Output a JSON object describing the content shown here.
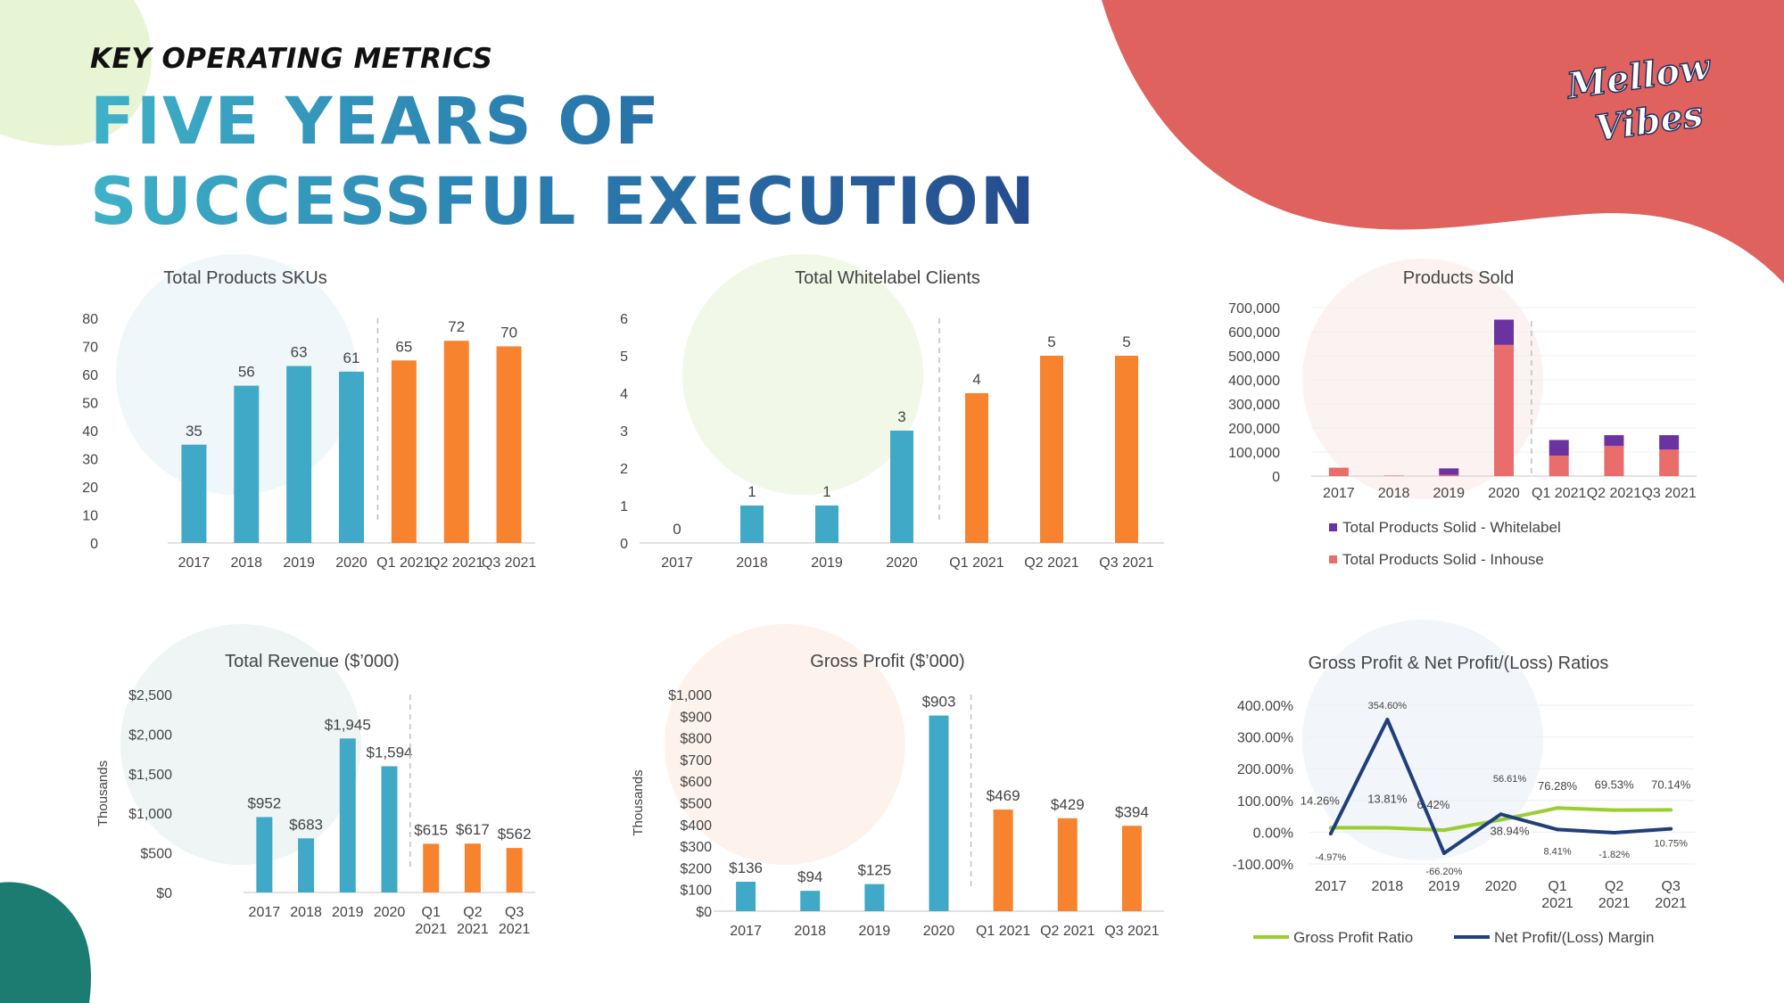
{
  "header": {
    "kicker": "KEY OPERATING METRICS",
    "title": "FIVE YEARS OF SUCCESSFUL EXECUTION",
    "logo_line1": "Mellow",
    "logo_line2": "Vibes"
  },
  "colors": {
    "historical": "#41A9C8",
    "current": "#F8832F",
    "inhouse": "#E96D6A",
    "whitelabel": "#6B33A1",
    "gross_line": "#9ACD32",
    "net_line": "#1F3F7A",
    "blob_red": "#E0625E",
    "blob_green": "#E8F5D5",
    "blob_teal": "#1C7C72"
  },
  "chart_data": [
    {
      "id": "skus",
      "type": "bar",
      "title": "Total Products SKUs",
      "categories": [
        "2017",
        "2018",
        "2019",
        "2020",
        "Q1 2021",
        "Q2 2021",
        "Q3 2021"
      ],
      "values": [
        35,
        56,
        63,
        61,
        65,
        72,
        70
      ],
      "labels": [
        "35",
        "56",
        "63",
        "61",
        "65",
        "72",
        "70"
      ],
      "ylim": [
        0,
        80
      ],
      "yticks": [
        0,
        10,
        20,
        30,
        40,
        50,
        60,
        70,
        80
      ],
      "ytick_labels": [
        "0",
        "10",
        "20",
        "30",
        "40",
        "50",
        "60",
        "70",
        "80"
      ],
      "historical_count": 4,
      "ylabel": ""
    },
    {
      "id": "clients",
      "type": "bar",
      "title": "Total Whitelabel Clients",
      "categories": [
        "2017",
        "2018",
        "2019",
        "2020",
        "Q1 2021",
        "Q2 2021",
        "Q3 2021"
      ],
      "values": [
        0,
        1,
        1,
        3,
        4,
        5,
        5
      ],
      "labels": [
        "0",
        "1",
        "1",
        "3",
        "4",
        "5",
        "5"
      ],
      "ylim": [
        0,
        6
      ],
      "yticks": [
        0,
        1,
        2,
        3,
        4,
        5,
        6
      ],
      "ytick_labels": [
        "0",
        "1",
        "2",
        "3",
        "4",
        "5",
        "6"
      ],
      "historical_count": 4,
      "ylabel": ""
    },
    {
      "id": "products_sold",
      "type": "bar",
      "stacked": true,
      "title": "Products Sold",
      "categories": [
        "2017",
        "2018",
        "2019",
        "2020",
        "Q1 2021",
        "Q2 2021",
        "Q3 2021"
      ],
      "series": [
        {
          "name": "Total Products Solid - Inhouse",
          "values": [
            35000,
            2000,
            5000,
            545000,
            85000,
            125000,
            110000
          ]
        },
        {
          "name": "Total Products Solid - Whitelabel",
          "values": [
            0,
            0,
            27000,
            105000,
            65000,
            45000,
            60000
          ]
        }
      ],
      "ylim": [
        0,
        700000
      ],
      "yticks": [
        0,
        100000,
        200000,
        300000,
        400000,
        500000,
        600000,
        700000
      ],
      "ytick_labels": [
        "0",
        "100,000",
        "200,000",
        "300,000",
        "400,000",
        "500,000",
        "600,000",
        "700,000"
      ],
      "legend": [
        "Total Products Solid - Whitelabel",
        "Total Products Solid - Inhouse"
      ]
    },
    {
      "id": "revenue",
      "type": "bar",
      "title": "Total Revenue ($’000)",
      "categories": [
        "2017",
        "2018",
        "2019",
        "2020",
        "Q1 2021",
        "Q2 2021",
        "Q3 2021"
      ],
      "category_lines": [
        [
          "2017"
        ],
        [
          "2018"
        ],
        [
          "2019"
        ],
        [
          "2020"
        ],
        [
          "Q1",
          "2021"
        ],
        [
          "Q2",
          "2021"
        ],
        [
          "Q3",
          "2021"
        ]
      ],
      "values": [
        952,
        683,
        1945,
        1594,
        615,
        617,
        562
      ],
      "labels": [
        "$952",
        "$683",
        "$1,945",
        "$1,594",
        "$615",
        "$617",
        "$562"
      ],
      "ylim": [
        0,
        2500
      ],
      "yticks": [
        0,
        500,
        1000,
        1500,
        2000,
        2500
      ],
      "ytick_labels": [
        "$0",
        "$500",
        "$1,000",
        "$1,500",
        "$2,000",
        "$2,500"
      ],
      "historical_count": 4,
      "ylabel": "Thousands"
    },
    {
      "id": "gross_profit",
      "type": "bar",
      "title": "Gross Profit ($’000)",
      "categories": [
        "2017",
        "2018",
        "2019",
        "2020",
        "Q1 2021",
        "Q2 2021",
        "Q3 2021"
      ],
      "values": [
        136,
        94,
        125,
        903,
        469,
        429,
        394
      ],
      "labels": [
        "$136",
        "$94",
        "$125",
        "$903",
        "$469",
        "$429",
        "$394"
      ],
      "ylim": [
        0,
        1000
      ],
      "yticks": [
        0,
        100,
        200,
        300,
        400,
        500,
        600,
        700,
        800,
        900,
        1000
      ],
      "ytick_labels": [
        "$0",
        "$100",
        "$200",
        "$300",
        "$400",
        "$500",
        "$600",
        "$700",
        "$800",
        "$900",
        "$1,000"
      ],
      "historical_count": 4,
      "ylabel": "Thousands"
    },
    {
      "id": "ratios",
      "type": "line",
      "title": "Gross Profit & Net Profit/(Loss) Ratios",
      "categories": [
        "2017",
        "2018",
        "2019",
        "2020",
        "Q1 2021",
        "Q2 2021",
        "Q3 2021"
      ],
      "category_lines": [
        [
          "2017"
        ],
        [
          "2018"
        ],
        [
          "2019"
        ],
        [
          "2020"
        ],
        [
          "Q1",
          "2021"
        ],
        [
          "Q2",
          "2021"
        ],
        [
          "Q3",
          "2021"
        ]
      ],
      "series": [
        {
          "name": "Gross Profit Ratio",
          "values": [
            14.26,
            13.81,
            6.42,
            38.94,
            76.28,
            69.53,
            70.14
          ],
          "labels": [
            "14.26%",
            "13.81%",
            "6.42%",
            "38.94%",
            "76.28%",
            "69.53%",
            "70.14%"
          ]
        },
        {
          "name": "Net Profit/(Loss) Margin",
          "values": [
            -4.97,
            354.6,
            -66.2,
            56.61,
            8.41,
            -1.82,
            10.75
          ],
          "labels": [
            "-4.97%",
            "354.60%",
            "-66.20%",
            "56.61%",
            "8.41%",
            "-1.82%",
            "10.75%"
          ]
        }
      ],
      "ylim": [
        -100,
        400
      ],
      "yticks": [
        -100,
        0,
        100,
        200,
        300,
        400
      ],
      "ytick_labels": [
        "-100.00%",
        "0.00%",
        "100.00%",
        "200.00%",
        "300.00%",
        "400.00%"
      ]
    }
  ]
}
